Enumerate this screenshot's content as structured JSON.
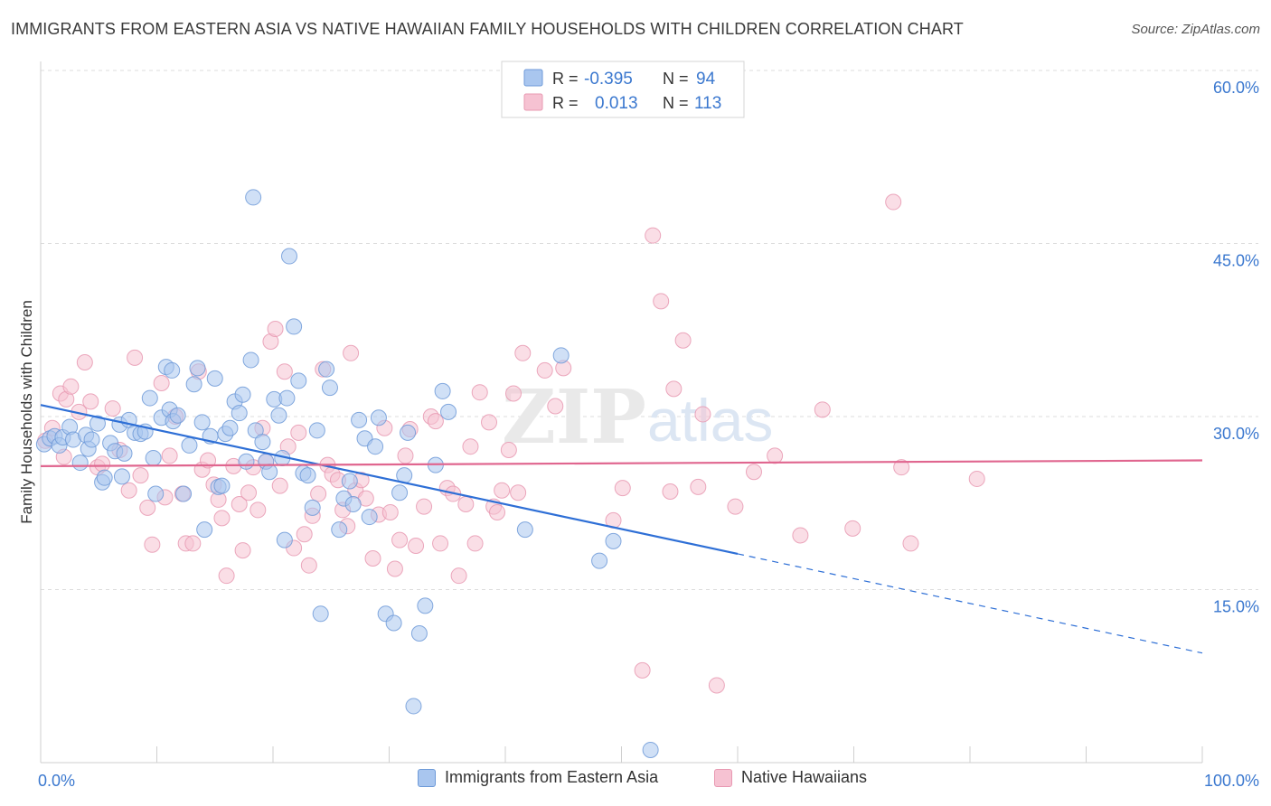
{
  "header": {
    "title": "IMMIGRANTS FROM EASTERN ASIA VS NATIVE HAWAIIAN FAMILY HOUSEHOLDS WITH CHILDREN CORRELATION CHART",
    "source": "Source: ZipAtlas.com"
  },
  "watermark": {
    "zip": "ZIP",
    "atlas": "atlas"
  },
  "colors": {
    "blue_fill": "#a9c6ef",
    "blue_stroke": "#6e9ad8",
    "blue_line": "#2e6fd6",
    "pink_fill": "#f6c2d2",
    "pink_stroke": "#e899b2",
    "pink_line": "#e0668f",
    "axis_text": "#3b78cf",
    "grid": "#dcdcdc"
  },
  "legend_top": {
    "rows": [
      {
        "r_label": "R =",
        "r_value": "-0.395",
        "n_label": "N =",
        "n_value": "94"
      },
      {
        "r_label": "R =",
        "r_value": "0.013",
        "n_label": "N =",
        "n_value": "113"
      }
    ]
  },
  "legend_bottom": {
    "items": [
      {
        "label": "Immigrants from Eastern Asia"
      },
      {
        "label": "Native Hawaiians"
      }
    ]
  },
  "chart_data": {
    "type": "scatter",
    "title": "IMMIGRANTS FROM EASTERN ASIA VS NATIVE HAWAIIAN FAMILY HOUSEHOLDS WITH CHILDREN CORRELATION CHART",
    "xlabel": "",
    "ylabel": "Family Households with Children",
    "xlim": [
      0,
      100
    ],
    "ylim": [
      0,
      60
    ],
    "x_tick_labels": [
      "0.0%",
      "100.0%"
    ],
    "y_ticks": [
      15,
      30,
      45,
      60
    ],
    "y_tick_labels": [
      "15.0%",
      "30.0%",
      "45.0%",
      "60.0%"
    ],
    "grid": true,
    "legend_placement": "top-center",
    "series": [
      {
        "name": "Immigrants from Eastern Asia",
        "color": "#a9c6ef",
        "r": -0.395,
        "n": 94,
        "trend": {
          "x0": 0,
          "y0": 31.0,
          "x1": 60,
          "y1": 18.1,
          "dashed_to_x": 100,
          "dashed_to_y": 9.5
        },
        "points": [
          [
            0.3,
            27.6
          ],
          [
            0.8,
            28.1
          ],
          [
            1.2,
            28.3
          ],
          [
            1.6,
            27.5
          ],
          [
            1.9,
            28.2
          ],
          [
            2.5,
            29.1
          ],
          [
            2.8,
            28.0
          ],
          [
            3.4,
            26.0
          ],
          [
            3.9,
            28.4
          ],
          [
            4.1,
            27.2
          ],
          [
            4.4,
            28.0
          ],
          [
            4.9,
            29.4
          ],
          [
            5.3,
            24.3
          ],
          [
            5.5,
            24.7
          ],
          [
            6.0,
            27.7
          ],
          [
            6.4,
            27.0
          ],
          [
            6.8,
            29.3
          ],
          [
            7.2,
            26.8
          ],
          [
            7.6,
            29.7
          ],
          [
            8.1,
            28.6
          ],
          [
            8.6,
            28.5
          ],
          [
            9.0,
            28.7
          ],
          [
            9.4,
            31.6
          ],
          [
            9.7,
            26.4
          ],
          [
            9.9,
            23.3
          ],
          [
            10.4,
            29.9
          ],
          [
            10.8,
            34.3
          ],
          [
            11.1,
            30.6
          ],
          [
            11.4,
            29.6
          ],
          [
            11.8,
            30.1
          ],
          [
            12.3,
            23.3
          ],
          [
            12.8,
            27.5
          ],
          [
            13.2,
            32.8
          ],
          [
            13.5,
            34.2
          ],
          [
            13.9,
            29.5
          ],
          [
            14.1,
            20.2
          ],
          [
            14.6,
            28.3
          ],
          [
            15.0,
            33.3
          ],
          [
            15.3,
            23.9
          ],
          [
            15.6,
            24.0
          ],
          [
            15.9,
            28.5
          ],
          [
            16.3,
            29.0
          ],
          [
            16.7,
            31.3
          ],
          [
            17.1,
            30.3
          ],
          [
            17.4,
            31.9
          ],
          [
            17.7,
            26.1
          ],
          [
            18.1,
            34.9
          ],
          [
            18.5,
            28.8
          ],
          [
            18.3,
            49.0
          ],
          [
            19.1,
            27.8
          ],
          [
            19.4,
            26.1
          ],
          [
            19.7,
            25.2
          ],
          [
            20.1,
            31.5
          ],
          [
            20.5,
            30.1
          ],
          [
            20.8,
            26.4
          ],
          [
            21.2,
            31.6
          ],
          [
            21.4,
            43.9
          ],
          [
            21.8,
            37.8
          ],
          [
            22.2,
            33.1
          ],
          [
            22.6,
            25.1
          ],
          [
            23.0,
            24.9
          ],
          [
            23.4,
            22.1
          ],
          [
            23.8,
            28.8
          ],
          [
            24.1,
            12.9
          ],
          [
            24.6,
            34.1
          ],
          [
            24.9,
            32.5
          ],
          [
            25.7,
            20.2
          ],
          [
            26.1,
            22.9
          ],
          [
            26.6,
            24.4
          ],
          [
            26.9,
            22.4
          ],
          [
            27.4,
            29.7
          ],
          [
            27.9,
            28.1
          ],
          [
            28.3,
            21.3
          ],
          [
            28.8,
            27.4
          ],
          [
            29.1,
            29.9
          ],
          [
            29.7,
            12.9
          ],
          [
            30.4,
            12.1
          ],
          [
            30.9,
            23.4
          ],
          [
            31.3,
            24.9
          ],
          [
            31.6,
            28.6
          ],
          [
            32.1,
            4.9
          ],
          [
            32.6,
            11.2
          ],
          [
            33.1,
            13.6
          ],
          [
            34.0,
            25.8
          ],
          [
            34.6,
            32.2
          ],
          [
            35.1,
            30.4
          ],
          [
            41.7,
            20.2
          ],
          [
            44.8,
            35.3
          ],
          [
            48.1,
            17.5
          ],
          [
            49.3,
            19.2
          ],
          [
            52.5,
            1.1
          ],
          [
            21.0,
            19.3
          ],
          [
            11.3,
            34.0
          ],
          [
            7.0,
            24.8
          ]
        ]
      },
      {
        "name": "Native Hawaiians",
        "color": "#f6c2d2",
        "r": 0.013,
        "n": 113,
        "trend": {
          "x0": 0,
          "y0": 25.7,
          "x1": 100,
          "y1": 26.2
        },
        "points": [
          [
            0.4,
            27.9
          ],
          [
            1.0,
            29.0
          ],
          [
            1.7,
            32.0
          ],
          [
            2.2,
            31.5
          ],
          [
            2.6,
            32.6
          ],
          [
            3.3,
            30.4
          ],
          [
            3.8,
            34.7
          ],
          [
            4.3,
            31.3
          ],
          [
            4.9,
            25.6
          ],
          [
            5.3,
            25.9
          ],
          [
            6.2,
            30.7
          ],
          [
            6.8,
            27.1
          ],
          [
            7.6,
            23.6
          ],
          [
            8.1,
            35.1
          ],
          [
            8.6,
            24.9
          ],
          [
            9.2,
            22.1
          ],
          [
            9.6,
            18.9
          ],
          [
            10.4,
            32.9
          ],
          [
            10.7,
            23.0
          ],
          [
            11.1,
            26.6
          ],
          [
            11.6,
            30.0
          ],
          [
            12.2,
            23.3
          ],
          [
            12.5,
            19.0
          ],
          [
            13.1,
            19.0
          ],
          [
            13.6,
            33.9
          ],
          [
            13.9,
            25.4
          ],
          [
            14.4,
            26.2
          ],
          [
            14.9,
            24.1
          ],
          [
            15.3,
            22.8
          ],
          [
            15.6,
            21.2
          ],
          [
            16.0,
            16.2
          ],
          [
            16.6,
            25.7
          ],
          [
            17.1,
            22.4
          ],
          [
            17.4,
            18.4
          ],
          [
            17.9,
            23.4
          ],
          [
            18.3,
            25.6
          ],
          [
            18.7,
            21.9
          ],
          [
            19.1,
            29.0
          ],
          [
            19.4,
            26.1
          ],
          [
            19.8,
            36.5
          ],
          [
            20.2,
            37.6
          ],
          [
            20.6,
            24.0
          ],
          [
            21.0,
            33.9
          ],
          [
            21.3,
            27.4
          ],
          [
            21.8,
            18.6
          ],
          [
            22.2,
            28.6
          ],
          [
            22.7,
            19.8
          ],
          [
            23.1,
            17.1
          ],
          [
            23.4,
            21.4
          ],
          [
            23.9,
            23.3
          ],
          [
            24.3,
            34.1
          ],
          [
            24.7,
            25.8
          ],
          [
            25.1,
            25.0
          ],
          [
            25.6,
            24.5
          ],
          [
            26.0,
            21.9
          ],
          [
            26.4,
            20.5
          ],
          [
            26.7,
            35.5
          ],
          [
            27.1,
            23.6
          ],
          [
            27.6,
            24.5
          ],
          [
            28.0,
            22.9
          ],
          [
            28.6,
            17.7
          ],
          [
            29.1,
            21.5
          ],
          [
            29.6,
            29.0
          ],
          [
            30.1,
            21.7
          ],
          [
            30.5,
            16.8
          ],
          [
            30.9,
            19.3
          ],
          [
            31.4,
            26.6
          ],
          [
            31.8,
            28.9
          ],
          [
            32.3,
            18.8
          ],
          [
            33.0,
            22.2
          ],
          [
            33.6,
            30.0
          ],
          [
            34.0,
            29.6
          ],
          [
            34.4,
            19.0
          ],
          [
            35.0,
            23.8
          ],
          [
            35.5,
            23.3
          ],
          [
            36.0,
            16.2
          ],
          [
            36.6,
            22.4
          ],
          [
            37.0,
            27.4
          ],
          [
            37.4,
            19.0
          ],
          [
            37.8,
            32.1
          ],
          [
            38.6,
            29.5
          ],
          [
            39.0,
            22.2
          ],
          [
            39.3,
            21.7
          ],
          [
            39.7,
            23.6
          ],
          [
            40.3,
            27.1
          ],
          [
            40.7,
            32.0
          ],
          [
            41.1,
            23.4
          ],
          [
            41.5,
            35.5
          ],
          [
            43.4,
            34.0
          ],
          [
            44.3,
            30.9
          ],
          [
            45.0,
            34.2
          ],
          [
            49.3,
            21.0
          ],
          [
            50.1,
            23.8
          ],
          [
            51.8,
            8.0
          ],
          [
            52.7,
            45.7
          ],
          [
            53.4,
            40.0
          ],
          [
            54.2,
            23.5
          ],
          [
            54.5,
            32.4
          ],
          [
            55.3,
            36.6
          ],
          [
            56.6,
            23.9
          ],
          [
            57.0,
            30.2
          ],
          [
            58.2,
            6.7
          ],
          [
            59.8,
            22.2
          ],
          [
            61.4,
            25.2
          ],
          [
            63.2,
            26.6
          ],
          [
            65.4,
            19.7
          ],
          [
            67.3,
            30.6
          ],
          [
            69.9,
            20.3
          ],
          [
            73.4,
            48.6
          ],
          [
            74.1,
            25.6
          ],
          [
            74.9,
            19.0
          ],
          [
            80.6,
            24.6
          ],
          [
            2.0,
            26.5
          ]
        ]
      }
    ]
  }
}
